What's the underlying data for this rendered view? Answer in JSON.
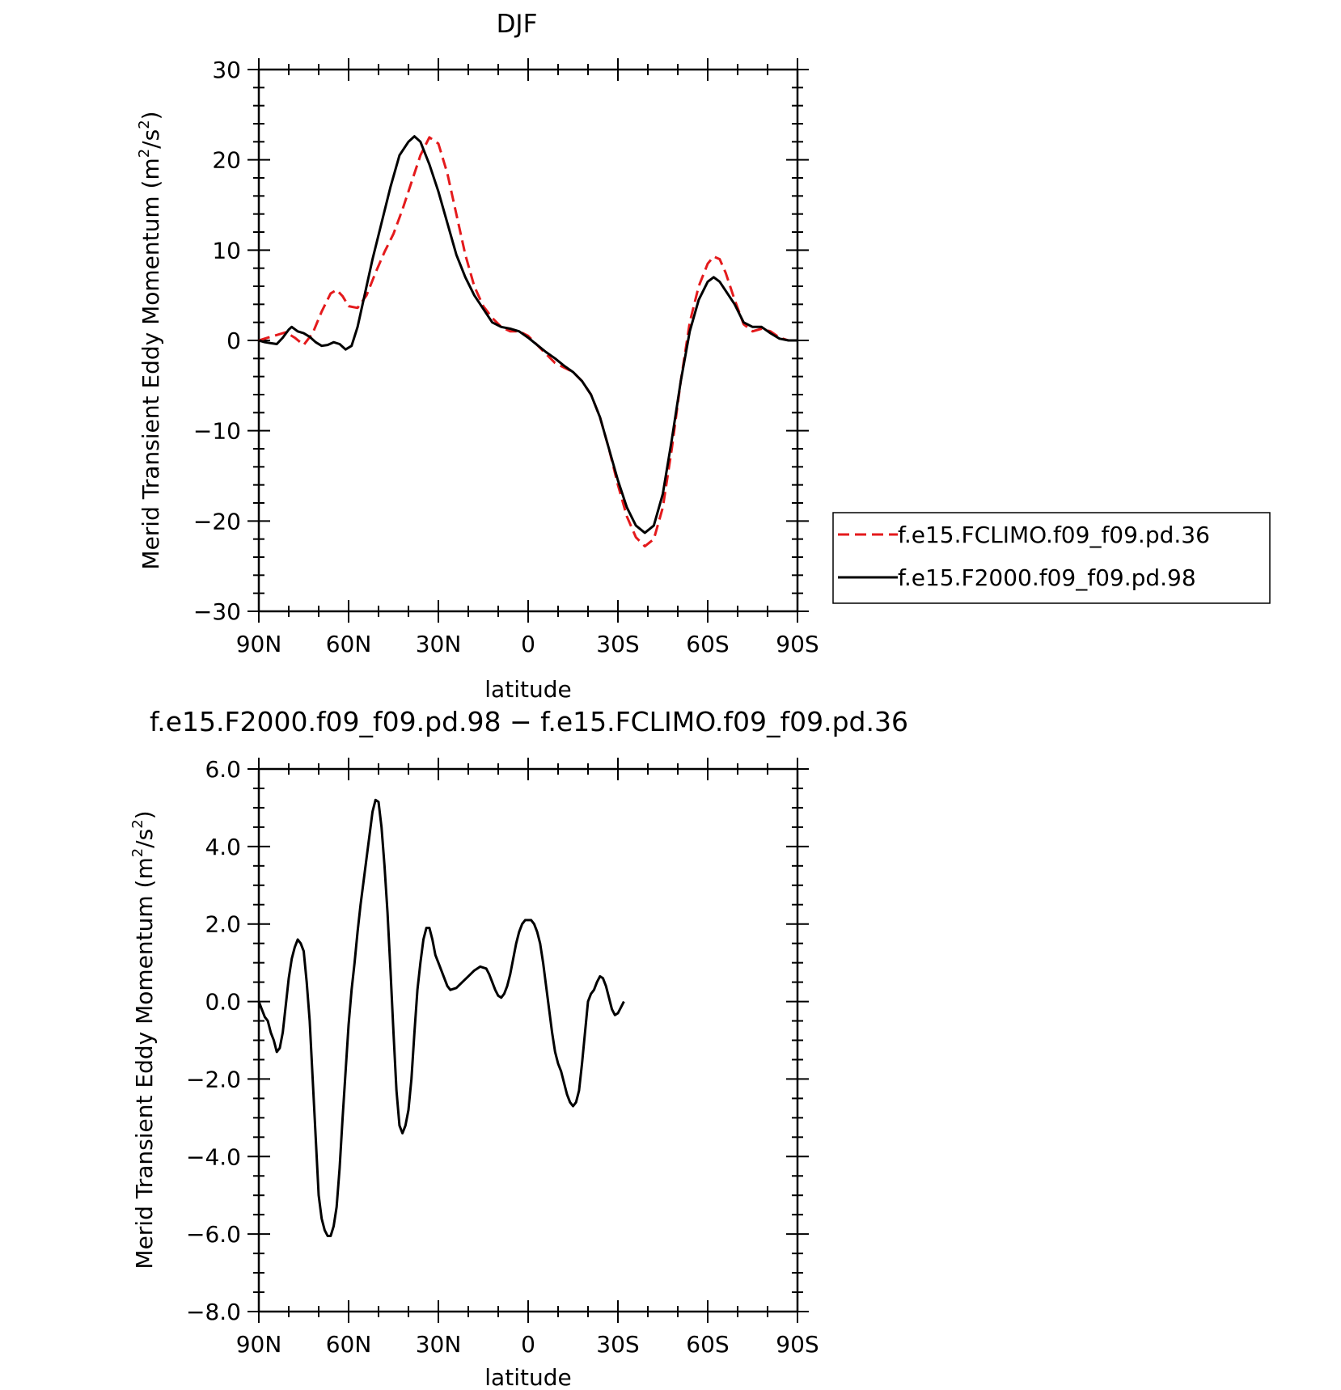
{
  "chart_data": [
    {
      "type": "line",
      "title": "DJF",
      "xlabel": "latitude",
      "ylabel": "Merid Transient Eddy Momentum (m²/s²)",
      "ylabel_main": "Merid Transient Eddy Momentum (m",
      "ylabel_units_tail": "/s",
      "ylabel_close": ")",
      "xlim": [
        -90,
        90
      ],
      "ylim": [
        -30,
        30
      ],
      "x_tick_values": [
        -90,
        -60,
        -30,
        0,
        30,
        60,
        90
      ],
      "x_tick_labels": [
        "90N",
        "60N",
        "30N",
        "0",
        "30S",
        "60S",
        "90S"
      ],
      "y_tick_values": [
        -30,
        -20,
        -10,
        0,
        10,
        20,
        30
      ],
      "y_tick_labels": [
        "−30",
        "−20",
        "−10",
        "0",
        "10",
        "20",
        "30"
      ],
      "grid": false,
      "legend": {
        "position": "right",
        "boxed": true
      },
      "series": [
        {
          "name": "f.e15.FCLIMO.f09_f09.pd.36",
          "color": "#e41a1c",
          "dash": "dashed",
          "points": [
            [
              -90,
              0
            ],
            [
              -87,
              0.3
            ],
            [
              -84,
              0.6
            ],
            [
              -81,
              0.9
            ],
            [
              -78,
              0.3
            ],
            [
              -75,
              -0.5
            ],
            [
              -72,
              0.8
            ],
            [
              -69,
              3.2
            ],
            [
              -66,
              5.2
            ],
            [
              -64,
              5.6
            ],
            [
              -62,
              4.9
            ],
            [
              -60,
              3.8
            ],
            [
              -57,
              3.6
            ],
            [
              -54,
              5.0
            ],
            [
              -51,
              7.5
            ],
            [
              -48,
              9.8
            ],
            [
              -45,
              11.8
            ],
            [
              -42,
              14.5
            ],
            [
              -39,
              17.5
            ],
            [
              -36,
              20.5
            ],
            [
              -33,
              22.5
            ],
            [
              -30,
              21.8
            ],
            [
              -27,
              18.5
            ],
            [
              -24,
              14.0
            ],
            [
              -21,
              9.5
            ],
            [
              -18,
              6.0
            ],
            [
              -15,
              3.8
            ],
            [
              -12,
              2.5
            ],
            [
              -9,
              1.5
            ],
            [
              -6,
              1.0
            ],
            [
              -3,
              1.0
            ],
            [
              0,
              0.5
            ],
            [
              3,
              -0.5
            ],
            [
              6,
              -1.5
            ],
            [
              9,
              -2.5
            ],
            [
              12,
              -3.0
            ],
            [
              15,
              -3.5
            ],
            [
              18,
              -4.5
            ],
            [
              21,
              -6.0
            ],
            [
              24,
              -8.5
            ],
            [
              27,
              -12.0
            ],
            [
              30,
              -16.0
            ],
            [
              33,
              -19.5
            ],
            [
              36,
              -21.8
            ],
            [
              39,
              -22.8
            ],
            [
              42,
              -22.0
            ],
            [
              45,
              -18.5
            ],
            [
              48,
              -12.0
            ],
            [
              51,
              -4.5
            ],
            [
              54,
              2.0
            ],
            [
              57,
              6.0
            ],
            [
              60,
              8.5
            ],
            [
              62,
              9.3
            ],
            [
              64,
              9.0
            ],
            [
              66,
              7.5
            ],
            [
              69,
              4.5
            ],
            [
              72,
              1.8
            ],
            [
              75,
              1.0
            ],
            [
              78,
              1.3
            ],
            [
              81,
              1.0
            ],
            [
              84,
              0.3
            ],
            [
              87,
              0.0
            ],
            [
              90,
              0.0
            ]
          ]
        },
        {
          "name": "f.e15.F2000.f09_f09.pd.98",
          "color": "#000000",
          "dash": "solid",
          "points": [
            [
              -90,
              0
            ],
            [
              -88,
              -0.2
            ],
            [
              -86,
              -0.3
            ],
            [
              -84,
              -0.4
            ],
            [
              -82,
              0.3
            ],
            [
              -80,
              1.2
            ],
            [
              -79,
              1.5
            ],
            [
              -77,
              1.0
            ],
            [
              -75,
              0.8
            ],
            [
              -73,
              0.4
            ],
            [
              -71,
              -0.2
            ],
            [
              -69,
              -0.6
            ],
            [
              -67,
              -0.5
            ],
            [
              -65,
              -0.2
            ],
            [
              -63,
              -0.4
            ],
            [
              -61,
              -1.0
            ],
            [
              -59,
              -0.6
            ],
            [
              -57,
              1.5
            ],
            [
              -55,
              4.5
            ],
            [
              -52,
              9.0
            ],
            [
              -49,
              13.0
            ],
            [
              -46,
              17.0
            ],
            [
              -43,
              20.5
            ],
            [
              -40,
              22.0
            ],
            [
              -38,
              22.6
            ],
            [
              -36,
              22.0
            ],
            [
              -33,
              19.5
            ],
            [
              -30,
              16.5
            ],
            [
              -27,
              13.0
            ],
            [
              -24,
              9.5
            ],
            [
              -21,
              7.0
            ],
            [
              -18,
              5.0
            ],
            [
              -15,
              3.5
            ],
            [
              -12,
              2.0
            ],
            [
              -9,
              1.5
            ],
            [
              -6,
              1.3
            ],
            [
              -3,
              1.0
            ],
            [
              0,
              0.3
            ],
            [
              3,
              -0.5
            ],
            [
              6,
              -1.3
            ],
            [
              9,
              -2.0
            ],
            [
              12,
              -2.8
            ],
            [
              15,
              -3.5
            ],
            [
              18,
              -4.5
            ],
            [
              21,
              -6.0
            ],
            [
              24,
              -8.5
            ],
            [
              27,
              -12.0
            ],
            [
              30,
              -15.5
            ],
            [
              33,
              -18.5
            ],
            [
              36,
              -20.5
            ],
            [
              39,
              -21.3
            ],
            [
              42,
              -20.5
            ],
            [
              45,
              -17.0
            ],
            [
              48,
              -11.0
            ],
            [
              51,
              -4.5
            ],
            [
              54,
              1.0
            ],
            [
              57,
              4.5
            ],
            [
              60,
              6.5
            ],
            [
              62,
              7.0
            ],
            [
              64,
              6.5
            ],
            [
              66,
              5.5
            ],
            [
              69,
              4.0
            ],
            [
              72,
              2.0
            ],
            [
              75,
              1.5
            ],
            [
              78,
              1.5
            ],
            [
              81,
              0.8
            ],
            [
              84,
              0.2
            ],
            [
              87,
              0.0
            ],
            [
              90,
              0.0
            ]
          ]
        }
      ]
    },
    {
      "type": "line",
      "title": "f.e15.F2000.f09_f09.pd.98 − f.e15.FCLIMO.f09_f09.pd.36",
      "xlabel": "latitude",
      "ylabel": "Merid Transient Eddy Momentum (m²/s²)",
      "ylabel_main": "Merid Transient Eddy Momentum (m",
      "ylabel_units_tail": "/s",
      "ylabel_close": ")",
      "xlim": [
        -90,
        90
      ],
      "ylim": [
        -8,
        6
      ],
      "x_tick_values": [
        -90,
        -60,
        -30,
        0,
        30,
        60,
        90
      ],
      "x_tick_labels": [
        "90N",
        "60N",
        "30N",
        "0",
        "30S",
        "60S",
        "90S"
      ],
      "y_tick_values": [
        -8,
        -6,
        -4,
        -2,
        0,
        2,
        4,
        6
      ],
      "y_tick_labels": [
        "−8.0",
        "−6.0",
        "−4.0",
        "−2.0",
        "0.0",
        "2.0",
        "4.0",
        "6.0"
      ],
      "grid": false,
      "series": [
        {
          "color": "#000000",
          "dash": "solid",
          "points": [
            [
              -90,
              0
            ],
            [
              -89,
              -0.2
            ],
            [
              -88,
              -0.4
            ],
            [
              -87,
              -0.5
            ],
            [
              -86,
              -0.8
            ],
            [
              -85,
              -1.0
            ],
            [
              -84,
              -1.3
            ],
            [
              -83,
              -1.2
            ],
            [
              -82,
              -0.8
            ],
            [
              -81,
              -0.1
            ],
            [
              -80,
              0.6
            ],
            [
              -79,
              1.1
            ],
            [
              -78,
              1.4
            ],
            [
              -77,
              1.6
            ],
            [
              -76,
              1.5
            ],
            [
              -75,
              1.3
            ],
            [
              -74,
              0.5
            ],
            [
              -73,
              -0.5
            ],
            [
              -72,
              -2.0
            ],
            [
              -71,
              -3.5
            ],
            [
              -70,
              -5.0
            ],
            [
              -69,
              -5.6
            ],
            [
              -68,
              -5.9
            ],
            [
              -67,
              -6.05
            ],
            [
              -66,
              -6.05
            ],
            [
              -65,
              -5.8
            ],
            [
              -64,
              -5.3
            ],
            [
              -63,
              -4.3
            ],
            [
              -62,
              -3.0
            ],
            [
              -61,
              -1.8
            ],
            [
              -60,
              -0.6
            ],
            [
              -59,
              0.3
            ],
            [
              -58,
              1.0
            ],
            [
              -57,
              1.8
            ],
            [
              -56,
              2.5
            ],
            [
              -55,
              3.1
            ],
            [
              -54,
              3.7
            ],
            [
              -53,
              4.3
            ],
            [
              -52,
              4.9
            ],
            [
              -51,
              5.2
            ],
            [
              -50,
              5.15
            ],
            [
              -49,
              4.5
            ],
            [
              -48,
              3.5
            ],
            [
              -47,
              2.3
            ],
            [
              -46,
              0.8
            ],
            [
              -45,
              -0.8
            ],
            [
              -44,
              -2.3
            ],
            [
              -43,
              -3.2
            ],
            [
              -42,
              -3.4
            ],
            [
              -41,
              -3.2
            ],
            [
              -40,
              -2.8
            ],
            [
              -39,
              -2.0
            ],
            [
              -38,
              -0.8
            ],
            [
              -37,
              0.3
            ],
            [
              -36,
              1.0
            ],
            [
              -35,
              1.6
            ],
            [
              -34,
              1.9
            ],
            [
              -33,
              1.9
            ],
            [
              -32,
              1.6
            ],
            [
              -31,
              1.2
            ],
            [
              -30,
              1.0
            ],
            [
              -29,
              0.8
            ],
            [
              -28,
              0.6
            ],
            [
              -27,
              0.4
            ],
            [
              -26,
              0.3
            ],
            [
              -24,
              0.35
            ],
            [
              -22,
              0.5
            ],
            [
              -20,
              0.65
            ],
            [
              -18,
              0.8
            ],
            [
              -16,
              0.9
            ],
            [
              -14,
              0.85
            ],
            [
              -13,
              0.7
            ],
            [
              -12,
              0.5
            ],
            [
              -11,
              0.3
            ],
            [
              -10,
              0.15
            ],
            [
              -9,
              0.1
            ],
            [
              -8,
              0.2
            ],
            [
              -7,
              0.4
            ],
            [
              -6,
              0.7
            ],
            [
              -5,
              1.1
            ],
            [
              -4,
              1.5
            ],
            [
              -3,
              1.8
            ],
            [
              -2,
              2.0
            ],
            [
              -1,
              2.1
            ],
            [
              1,
              2.1
            ],
            [
              2,
              2.0
            ],
            [
              3,
              1.8
            ],
            [
              4,
              1.5
            ],
            [
              5,
              1.0
            ],
            [
              6,
              0.4
            ],
            [
              7,
              -0.2
            ],
            [
              8,
              -0.8
            ],
            [
              9,
              -1.3
            ],
            [
              10,
              -1.6
            ],
            [
              11,
              -1.8
            ],
            [
              12,
              -2.1
            ],
            [
              13,
              -2.4
            ],
            [
              14,
              -2.6
            ],
            [
              15,
              -2.7
            ],
            [
              16,
              -2.6
            ],
            [
              17,
              -2.3
            ],
            [
              18,
              -1.6
            ],
            [
              19,
              -0.8
            ],
            [
              20,
              0.0
            ],
            [
              21,
              0.2
            ],
            [
              22,
              0.3
            ],
            [
              23,
              0.5
            ],
            [
              24,
              0.65
            ],
            [
              25,
              0.6
            ],
            [
              26,
              0.4
            ],
            [
              27,
              0.1
            ],
            [
              28,
              -0.2
            ],
            [
              29,
              -0.35
            ],
            [
              30,
              -0.3
            ],
            [
              31,
              -0.15
            ],
            [
              32,
              0.0
            ]
          ]
        }
      ]
    }
  ]
}
